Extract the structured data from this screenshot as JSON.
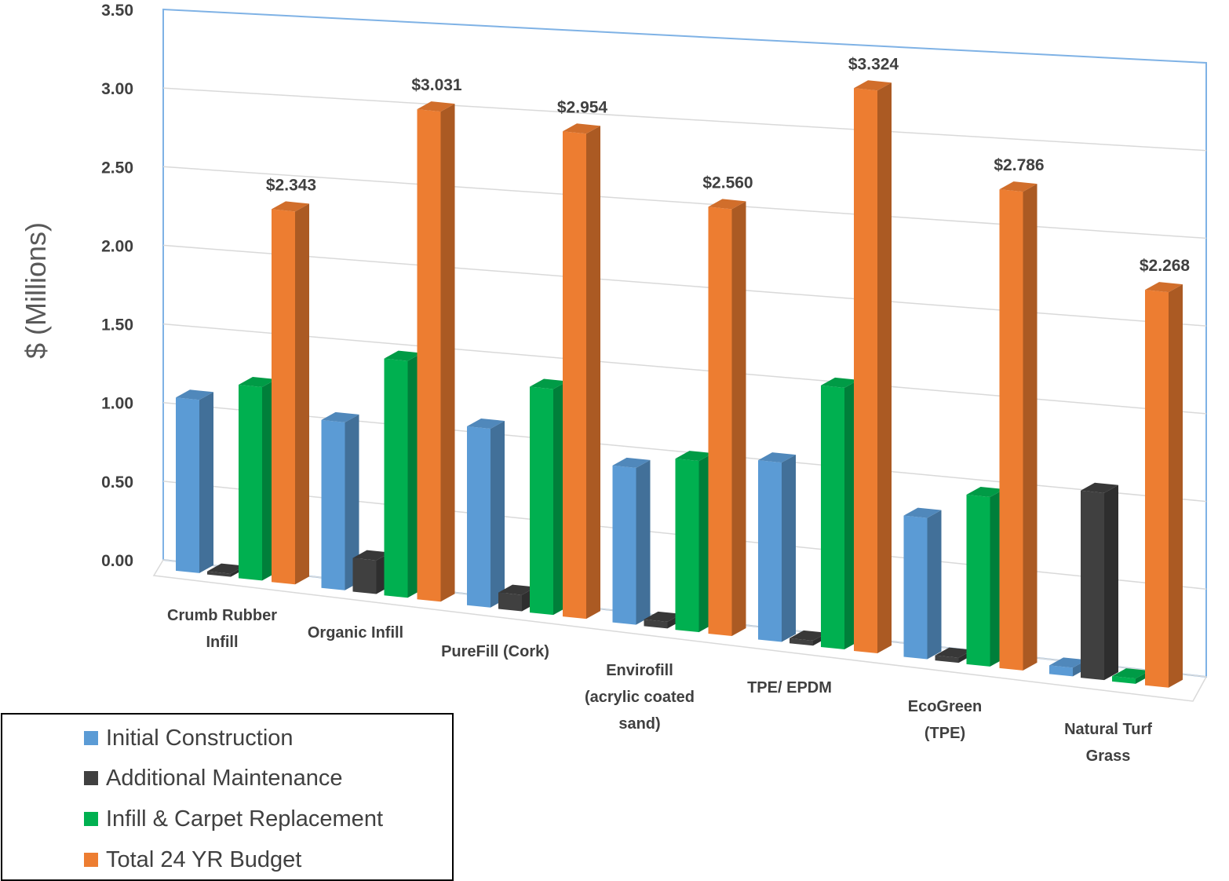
{
  "chart_data": {
    "type": "bar",
    "style": "3d-clustered-column",
    "ylabel": "$ (Millions)",
    "ylim": [
      0,
      3.5
    ],
    "yticks": [
      "0.00",
      "0.50",
      "1.00",
      "1.50",
      "2.00",
      "2.50",
      "3.00",
      "3.50"
    ],
    "grid": true,
    "legend_position": "bottom-left",
    "categories": [
      [
        "Crumb Rubber",
        "Infill"
      ],
      [
        "Organic Infill"
      ],
      [
        "PureFill (Cork)"
      ],
      [
        "Envirofill",
        "(acrylic coated",
        "sand)"
      ],
      [
        "TPE/ EPDM"
      ],
      [
        "EcoGreen",
        "(TPE)"
      ],
      [
        "Natural Turf",
        "Grass"
      ]
    ],
    "series": [
      {
        "name": "Initial Construction",
        "color": "#5B9BD5",
        "values": [
          1.1,
          1.05,
          1.1,
          0.95,
          1.07,
          0.83,
          0.05
        ]
      },
      {
        "name": "Additional Maintenance",
        "color": "#404040",
        "values": [
          0.02,
          0.21,
          0.1,
          0.04,
          0.03,
          0.03,
          1.08
        ]
      },
      {
        "name": "Infill & Carpet Replacement",
        "color": "#00B050",
        "values": [
          1.22,
          1.47,
          1.38,
          1.03,
          1.55,
          0.99,
          0.03
        ]
      },
      {
        "name": "Total 24 YR Budget",
        "color": "#ED7D31",
        "values": [
          2.343,
          3.031,
          2.954,
          2.56,
          3.324,
          2.786,
          2.268
        ]
      }
    ],
    "data_labels": [
      "$2.343",
      "$3.031",
      "$2.954",
      "$2.560",
      "$3.324",
      "$2.786",
      "$2.268"
    ]
  },
  "legend": {
    "items": [
      {
        "label": "Initial Construction",
        "color": "#5B9BD5"
      },
      {
        "label": "Additional Maintenance",
        "color": "#404040"
      },
      {
        "label": "Infill & Carpet Replacement",
        "color": "#00B050"
      },
      {
        "label": "Total 24 YR Budget",
        "color": "#ED7D31"
      }
    ]
  }
}
